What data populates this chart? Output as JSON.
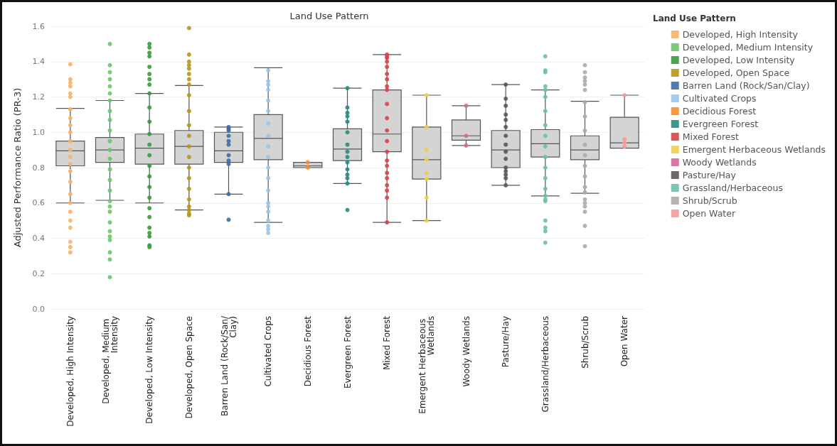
{
  "chart_data": {
    "type": "box",
    "title": "Land Use Pattern",
    "ylabel": "Adjusted Performance Ratio (PR-3)",
    "legend_title": "Land Use Pattern",
    "legend": "right",
    "grid": "y",
    "marker": "circle",
    "categories": [
      "Developed, High Intensity",
      "Developed, Medium Intensity",
      "Developed, Low Intensity",
      "Developed, Open Space",
      "Barren Land (Rock/San/Clay)",
      "Cultivated Crops",
      "Decidious Forest",
      "Evergreen Forest",
      "Mixed Forest",
      "Emergent Herbaceous Wetlands",
      "Woody Wetlands",
      "Pasture/Hay",
      "Grassland/Herbaceous",
      "Shrub/Scrub",
      "Open Water"
    ],
    "ylim": [
      0,
      1.6
    ],
    "yticks": [
      {
        "value": 0,
        "label": "0.0"
      },
      0.2,
      0.4,
      0.6,
      0.8,
      {
        "value": 1.0,
        "label": "1.0"
      },
      1.2,
      1.4,
      1.6
    ],
    "boxes": [
      {
        "low": 0.6,
        "q1": 0.81,
        "median": 0.895,
        "q3": 0.95,
        "high": 1.135
      },
      {
        "low": 0.615,
        "q1": 0.83,
        "median": 0.9,
        "q3": 0.97,
        "high": 1.18
      },
      {
        "low": 0.6,
        "q1": 0.82,
        "median": 0.91,
        "q3": 0.99,
        "high": 1.22
      },
      {
        "low": 0.56,
        "q1": 0.82,
        "median": 0.92,
        "q3": 1.01,
        "high": 1.265
      },
      {
        "low": 0.65,
        "q1": 0.83,
        "median": 0.895,
        "q3": 1.0,
        "high": 1.03
      },
      {
        "low": 0.49,
        "q1": 0.845,
        "median": 0.965,
        "q3": 1.1,
        "high": 1.365
      },
      {
        "low": 0.8,
        "q1": 0.8,
        "median": 0.81,
        "q3": 0.83,
        "high": 0.83
      },
      {
        "low": 0.71,
        "q1": 0.84,
        "median": 0.905,
        "q3": 1.02,
        "high": 1.25
      },
      {
        "low": 0.49,
        "q1": 0.89,
        "median": 0.99,
        "q3": 1.24,
        "high": 1.44
      },
      {
        "low": 0.5,
        "q1": 0.735,
        "median": 0.845,
        "q3": 1.03,
        "high": 1.21
      },
      {
        "low": 0.925,
        "q1": 0.955,
        "median": 0.98,
        "q3": 1.07,
        "high": 1.15
      },
      {
        "low": 0.7,
        "q1": 0.8,
        "median": 0.9,
        "q3": 1.01,
        "high": 1.27
      },
      {
        "low": 0.64,
        "q1": 0.86,
        "median": 0.935,
        "q3": 1.015,
        "high": 1.24
      },
      {
        "low": 0.655,
        "q1": 0.845,
        "median": 0.9,
        "q3": 0.98,
        "high": 1.175
      },
      {
        "low": 0.91,
        "q1": 0.91,
        "median": 0.94,
        "q3": 1.085,
        "high": 1.21
      }
    ],
    "series": [
      {
        "type": "scatter",
        "name": "Developed, High Intensity",
        "color": "#f7b26b",
        "x": [
          "Developed, High Intensity",
          "Developed, High Intensity",
          "Developed, High Intensity",
          "Developed, High Intensity",
          "Developed, High Intensity",
          "Developed, High Intensity",
          "Developed, High Intensity",
          "Developed, High Intensity",
          "Developed, High Intensity",
          "Developed, High Intensity",
          "Developed, High Intensity",
          "Developed, High Intensity",
          "Developed, High Intensity",
          "Developed, High Intensity",
          "Developed, High Intensity",
          "Developed, High Intensity",
          "Developed, High Intensity",
          "Developed, High Intensity",
          "Developed, High Intensity",
          "Developed, High Intensity",
          "Developed, High Intensity",
          "Developed, High Intensity",
          "Developed, High Intensity",
          "Developed, High Intensity"
        ],
        "values": [
          1.385,
          1.3,
          1.28,
          1.26,
          1.22,
          1.2,
          1.13,
          1.08,
          1.04,
          1.0,
          0.95,
          0.9,
          0.86,
          0.82,
          0.78,
          0.72,
          0.65,
          0.6,
          0.55,
          0.5,
          0.46,
          0.38,
          0.35,
          0.32
        ]
      },
      {
        "type": "scatter",
        "name": "Developed, Medium Intensity",
        "color": "#6cc56a",
        "x": [
          "Developed, Medium Intensity",
          "Developed, Medium Intensity",
          "Developed, Medium Intensity",
          "Developed, Medium Intensity",
          "Developed, Medium Intensity",
          "Developed, Medium Intensity",
          "Developed, Medium Intensity",
          "Developed, Medium Intensity",
          "Developed, Medium Intensity",
          "Developed, Medium Intensity",
          "Developed, Medium Intensity",
          "Developed, Medium Intensity",
          "Developed, Medium Intensity",
          "Developed, Medium Intensity",
          "Developed, Medium Intensity",
          "Developed, Medium Intensity",
          "Developed, Medium Intensity",
          "Developed, Medium Intensity",
          "Developed, Medium Intensity",
          "Developed, Medium Intensity",
          "Developed, Medium Intensity",
          "Developed, Medium Intensity",
          "Developed, Medium Intensity",
          "Developed, Medium Intensity",
          "Developed, Medium Intensity",
          "Developed, Medium Intensity"
        ],
        "values": [
          1.5,
          1.38,
          1.34,
          1.3,
          1.26,
          1.22,
          1.18,
          1.12,
          1.07,
          1.01,
          0.95,
          0.9,
          0.85,
          0.79,
          0.73,
          0.67,
          0.61,
          0.58,
          0.55,
          0.49,
          0.44,
          0.41,
          0.39,
          0.32,
          0.28,
          0.18
        ]
      },
      {
        "type": "scatter",
        "name": "Developed, Low Intensity",
        "color": "#3a9a3a",
        "x": [
          "Developed, Low Intensity",
          "Developed, Low Intensity",
          "Developed, Low Intensity",
          "Developed, Low Intensity",
          "Developed, Low Intensity",
          "Developed, Low Intensity",
          "Developed, Low Intensity",
          "Developed, Low Intensity",
          "Developed, Low Intensity",
          "Developed, Low Intensity",
          "Developed, Low Intensity",
          "Developed, Low Intensity",
          "Developed, Low Intensity",
          "Developed, Low Intensity",
          "Developed, Low Intensity",
          "Developed, Low Intensity",
          "Developed, Low Intensity",
          "Developed, Low Intensity",
          "Developed, Low Intensity",
          "Developed, Low Intensity",
          "Developed, Low Intensity",
          "Developed, Low Intensity",
          "Developed, Low Intensity",
          "Developed, Low Intensity",
          "Developed, Low Intensity"
        ],
        "values": [
          1.5,
          1.48,
          1.45,
          1.43,
          1.37,
          1.33,
          1.3,
          1.27,
          1.22,
          1.14,
          1.06,
          0.99,
          0.93,
          0.87,
          0.81,
          0.75,
          0.69,
          0.63,
          0.57,
          0.52,
          0.46,
          0.43,
          0.41,
          0.36,
          0.35
        ]
      },
      {
        "type": "scatter",
        "name": "Developed, Open Space",
        "color": "#b8951a",
        "x": [
          "Developed, Open Space",
          "Developed, Open Space",
          "Developed, Open Space",
          "Developed, Open Space",
          "Developed, Open Space",
          "Developed, Open Space",
          "Developed, Open Space",
          "Developed, Open Space",
          "Developed, Open Space",
          "Developed, Open Space",
          "Developed, Open Space",
          "Developed, Open Space",
          "Developed, Open Space",
          "Developed, Open Space",
          "Developed, Open Space",
          "Developed, Open Space",
          "Developed, Open Space",
          "Developed, Open Space",
          "Developed, Open Space",
          "Developed, Open Space",
          "Developed, Open Space",
          "Developed, Open Space"
        ],
        "values": [
          1.59,
          1.44,
          1.4,
          1.38,
          1.36,
          1.33,
          1.3,
          1.27,
          1.21,
          1.12,
          1.04,
          0.98,
          0.92,
          0.86,
          0.8,
          0.74,
          0.68,
          0.62,
          0.58,
          0.56,
          0.54,
          0.53
        ]
      },
      {
        "type": "scatter",
        "name": "Barren Land (Rock/San/Clay)",
        "color": "#3b6ea5",
        "x": [
          "Barren Land (Rock/San/Clay)",
          "Barren Land (Rock/San/Clay)",
          "Barren Land (Rock/San/Clay)",
          "Barren Land (Rock/San/Clay)",
          "Barren Land (Rock/San/Clay)",
          "Barren Land (Rock/San/Clay)",
          "Barren Land (Rock/San/Clay)",
          "Barren Land (Rock/San/Clay)",
          "Barren Land (Rock/San/Clay)",
          "Barren Land (Rock/San/Clay)",
          "Barren Land (Rock/San/Clay)"
        ],
        "values": [
          1.03,
          1.02,
          1.01,
          0.98,
          0.95,
          0.93,
          0.87,
          0.84,
          0.82,
          0.65,
          0.505
        ]
      },
      {
        "type": "scatter",
        "name": "Cultivated Crops",
        "color": "#9ac5e8",
        "x": [
          "Cultivated Crops",
          "Cultivated Crops",
          "Cultivated Crops",
          "Cultivated Crops",
          "Cultivated Crops",
          "Cultivated Crops",
          "Cultivated Crops",
          "Cultivated Crops",
          "Cultivated Crops",
          "Cultivated Crops",
          "Cultivated Crops",
          "Cultivated Crops",
          "Cultivated Crops",
          "Cultivated Crops",
          "Cultivated Crops",
          "Cultivated Crops",
          "Cultivated Crops",
          "Cultivated Crops",
          "Cultivated Crops",
          "Cultivated Crops"
        ],
        "values": [
          1.35,
          1.29,
          1.27,
          1.24,
          1.18,
          1.12,
          1.05,
          0.98,
          0.92,
          0.86,
          0.8,
          0.74,
          0.67,
          0.6,
          0.58,
          0.55,
          0.5,
          0.47,
          0.45,
          0.43
        ]
      },
      {
        "type": "scatter",
        "name": "Decidious Forest",
        "color": "#f28e2b",
        "x": [
          "Decidious Forest",
          "Decidious Forest"
        ],
        "values": [
          0.83,
          0.8
        ]
      },
      {
        "type": "scatter",
        "name": "Evergreen Forest",
        "color": "#2a8a7e",
        "x": [
          "Evergreen Forest",
          "Evergreen Forest",
          "Evergreen Forest",
          "Evergreen Forest",
          "Evergreen Forest",
          "Evergreen Forest",
          "Evergreen Forest",
          "Evergreen Forest",
          "Evergreen Forest",
          "Evergreen Forest",
          "Evergreen Forest",
          "Evergreen Forest",
          "Evergreen Forest",
          "Evergreen Forest",
          "Evergreen Forest"
        ],
        "values": [
          1.25,
          1.14,
          1.11,
          1.09,
          1.06,
          1.0,
          0.93,
          0.89,
          0.86,
          0.83,
          0.79,
          0.76,
          0.74,
          0.71,
          0.56
        ]
      },
      {
        "type": "scatter",
        "name": "Mixed Forest",
        "color": "#d6454b",
        "x": [
          "Mixed Forest",
          "Mixed Forest",
          "Mixed Forest",
          "Mixed Forest",
          "Mixed Forest",
          "Mixed Forest",
          "Mixed Forest",
          "Mixed Forest",
          "Mixed Forest",
          "Mixed Forest",
          "Mixed Forest",
          "Mixed Forest",
          "Mixed Forest",
          "Mixed Forest",
          "Mixed Forest",
          "Mixed Forest",
          "Mixed Forest",
          "Mixed Forest",
          "Mixed Forest",
          "Mixed Forest",
          "Mixed Forest",
          "Mixed Forest"
        ],
        "values": [
          1.44,
          1.43,
          1.42,
          1.4,
          1.37,
          1.33,
          1.3,
          1.26,
          1.24,
          1.16,
          1.08,
          1.01,
          0.95,
          0.89,
          0.84,
          0.81,
          0.77,
          0.74,
          0.7,
          0.67,
          0.63,
          0.49
        ]
      },
      {
        "type": "scatter",
        "name": "Emergent Herbaceous Wetlands",
        "color": "#f1ce4b",
        "x": [
          "Emergent Herbaceous Wetlands",
          "Emergent Herbaceous Wetlands",
          "Emergent Herbaceous Wetlands",
          "Emergent Herbaceous Wetlands",
          "Emergent Herbaceous Wetlands",
          "Emergent Herbaceous Wetlands",
          "Emergent Herbaceous Wetlands",
          "Emergent Herbaceous Wetlands"
        ],
        "values": [
          1.21,
          1.03,
          0.9,
          0.845,
          0.77,
          0.735,
          0.63,
          0.5
        ]
      },
      {
        "type": "scatter",
        "name": "Woody Wetlands",
        "color": "#d4689a",
        "x": [
          "Woody Wetlands",
          "Woody Wetlands",
          "Woody Wetlands"
        ],
        "values": [
          1.15,
          0.98,
          0.925
        ]
      },
      {
        "type": "scatter",
        "name": "Pasture/Hay",
        "color": "#5d5557",
        "x": [
          "Pasture/Hay",
          "Pasture/Hay",
          "Pasture/Hay",
          "Pasture/Hay",
          "Pasture/Hay",
          "Pasture/Hay",
          "Pasture/Hay",
          "Pasture/Hay",
          "Pasture/Hay",
          "Pasture/Hay",
          "Pasture/Hay",
          "Pasture/Hay",
          "Pasture/Hay",
          "Pasture/Hay",
          "Pasture/Hay"
        ],
        "values": [
          1.27,
          1.19,
          1.15,
          1.1,
          1.07,
          1.03,
          0.98,
          0.93,
          0.89,
          0.85,
          0.8,
          0.78,
          0.76,
          0.74,
          0.7
        ]
      },
      {
        "type": "scatter",
        "name": "Grassland/Herbaceous",
        "color": "#6cbfae",
        "x": [
          "Grassland/Herbaceous",
          "Grassland/Herbaceous",
          "Grassland/Herbaceous",
          "Grassland/Herbaceous",
          "Grassland/Herbaceous",
          "Grassland/Herbaceous",
          "Grassland/Herbaceous",
          "Grassland/Herbaceous",
          "Grassland/Herbaceous",
          "Grassland/Herbaceous",
          "Grassland/Herbaceous",
          "Grassland/Herbaceous",
          "Grassland/Herbaceous",
          "Grassland/Herbaceous",
          "Grassland/Herbaceous",
          "Grassland/Herbaceous",
          "Grassland/Herbaceous",
          "Grassland/Herbaceous",
          "Grassland/Herbaceous",
          "Grassland/Herbaceous",
          "Grassland/Herbaceous"
        ],
        "values": [
          1.43,
          1.35,
          1.34,
          1.26,
          1.2,
          1.12,
          1.04,
          0.98,
          0.92,
          0.86,
          0.8,
          0.74,
          0.68,
          0.64,
          0.62,
          0.61,
          0.5,
          0.46,
          0.44,
          0.375,
          1.24
        ]
      },
      {
        "type": "scatter",
        "name": "Shrub/Scrub",
        "color": "#b0a8a4",
        "x": [
          "Shrub/Scrub",
          "Shrub/Scrub",
          "Shrub/Scrub",
          "Shrub/Scrub",
          "Shrub/Scrub",
          "Shrub/Scrub",
          "Shrub/Scrub",
          "Shrub/Scrub",
          "Shrub/Scrub",
          "Shrub/Scrub",
          "Shrub/Scrub",
          "Shrub/Scrub",
          "Shrub/Scrub",
          "Shrub/Scrub",
          "Shrub/Scrub",
          "Shrub/Scrub",
          "Shrub/Scrub",
          "Shrub/Scrub",
          "Shrub/Scrub",
          "Shrub/Scrub",
          "Shrub/Scrub"
        ],
        "values": [
          1.38,
          1.34,
          1.31,
          1.29,
          1.27,
          1.24,
          1.17,
          1.09,
          1.01,
          0.93,
          0.87,
          0.81,
          0.75,
          0.69,
          0.62,
          0.6,
          0.58,
          0.55,
          0.47,
          0.355,
          0.66
        ]
      },
      {
        "type": "scatter",
        "name": "Open Water",
        "color": "#f79a9a",
        "x": [
          "Open Water",
          "Open Water",
          "Open Water",
          "Open Water"
        ],
        "values": [
          1.21,
          0.96,
          0.94,
          0.92
        ]
      }
    ]
  }
}
